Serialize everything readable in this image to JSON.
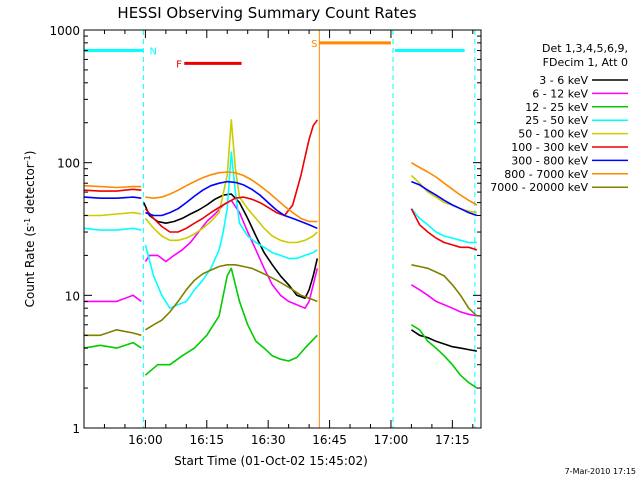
{
  "chart_data": {
    "type": "line",
    "title": "HESSI Observing Summary Count Rates",
    "xlabel": "Start Time (01-Oct-02 15:45:02)",
    "ylabel_main": "Count Rate (s",
    "ylabel_sup1": "-1",
    "ylabel_mid": " detector",
    "ylabel_sup2": "-1",
    "ylabel_end": ")",
    "x_unit": "minutes since start",
    "xlim": [
      0,
      97
    ],
    "ylim": [
      1,
      1000
    ],
    "yscale": "log",
    "x_ticks": [
      {
        "value": 15,
        "label": "16:00"
      },
      {
        "value": 30,
        "label": "16:15"
      },
      {
        "value": 45,
        "label": "16:30"
      },
      {
        "value": 60,
        "label": "16:45"
      },
      {
        "value": 75,
        "label": "17:00"
      },
      {
        "value": 90,
        "label": "17:15"
      }
    ],
    "y_ticks": [
      {
        "value": 1,
        "label": "1"
      },
      {
        "value": 10,
        "label": "10"
      },
      {
        "value": 100,
        "label": "100"
      },
      {
        "value": 1000,
        "label": "1000"
      }
    ],
    "legend_header": [
      "Det 1,3,4,5,6,9,",
      "FDecim 1, Att 0"
    ],
    "legend_position": "right",
    "series": [
      {
        "name": "3 - 6 keV",
        "color": "#000000",
        "segments": [
          {
            "x": [
              14.6,
              16,
              18,
              20,
              22,
              24,
              26,
              28,
              30,
              32,
              34,
              36,
              38,
              40,
              42,
              44,
              46,
              48,
              50,
              52,
              54,
              55,
              56,
              57
            ],
            "y": [
              50,
              40,
              36,
              35,
              36,
              38,
              41,
              44,
              48,
              53,
              57,
              58,
              50,
              38,
              28,
              21,
              17,
              14,
              12,
              10,
              9.5,
              11,
              14,
              19
            ]
          },
          {
            "x": [
              80,
              82,
              84,
              86,
              88,
              90,
              92,
              94,
              96
            ],
            "y": [
              5.5,
              5,
              4.8,
              4.5,
              4.3,
              4.1,
              4,
              3.9,
              3.8
            ]
          }
        ]
      },
      {
        "name": "6 - 12 keV",
        "color": "#ff00ff",
        "segments": [
          {
            "x": [
              0,
              4,
              8,
              12,
              14
            ],
            "y": [
              9,
              9,
              9,
              10,
              9
            ]
          },
          {
            "x": [
              15,
              16,
              18,
              20,
              22,
              24,
              26,
              28,
              30,
              32,
              34,
              36,
              38,
              40,
              42,
              44,
              46,
              48,
              50,
              52,
              54,
              55,
              56,
              57
            ],
            "y": [
              18,
              20,
              20,
              18,
              20,
              22,
              25,
              30,
              36,
              41,
              48,
              52,
              42,
              30,
              22,
              16,
              12,
              10,
              9,
              8.5,
              8,
              9,
              12,
              16
            ]
          },
          {
            "x": [
              80,
              82,
              84,
              86,
              88,
              90,
              92,
              94,
              96
            ],
            "y": [
              12,
              11,
              10,
              9,
              8.5,
              8,
              7.5,
              7.2,
              7
            ]
          }
        ]
      },
      {
        "name": "12 - 25 keV",
        "color": "#00cc00",
        "segments": [
          {
            "x": [
              0,
              4,
              8,
              12,
              14
            ],
            "y": [
              4,
              4.2,
              4,
              4.4,
              4
            ]
          },
          {
            "x": [
              15,
              18,
              21,
              24,
              27,
              30,
              33,
              35,
              36,
              37,
              38,
              40,
              42,
              44,
              46,
              48,
              50,
              52,
              54,
              57
            ],
            "y": [
              2.5,
              3,
              3,
              3.5,
              4,
              5,
              7,
              14,
              16,
              12,
              9,
              6,
              4.5,
              4,
              3.5,
              3.3,
              3.2,
              3.4,
              4,
              5
            ]
          },
          {
            "x": [
              80,
              82,
              84,
              86,
              88,
              90,
              92,
              94,
              96
            ],
            "y": [
              6,
              5.5,
              4.5,
              4,
              3.5,
              3,
              2.5,
              2.2,
              2
            ]
          }
        ]
      },
      {
        "name": "25 - 50 keV",
        "color": "#00ffff",
        "segments": [
          {
            "x": [
              0,
              4,
              8,
              12,
              14
            ],
            "y": [
              32,
              31,
              31,
              32,
              31
            ]
          },
          {
            "x": [
              15,
              17,
              19,
              21,
              23,
              25,
              27,
              29,
              31,
              33,
              34,
              35,
              36,
              37,
              38,
              40,
              42,
              44,
              46,
              48,
              50,
              52,
              54,
              56,
              57
            ],
            "y": [
              24,
              14,
              10,
              8,
              8.5,
              9,
              11,
              13,
              16,
              22,
              30,
              45,
              120,
              60,
              35,
              28,
              25,
              23,
              21,
              20,
              19,
              19,
              20,
              21,
              22
            ]
          },
          {
            "x": [
              80,
              82,
              84,
              86,
              88,
              90,
              92,
              94,
              96
            ],
            "y": [
              45,
              38,
              34,
              30,
              28,
              27,
              26,
              25,
              25
            ]
          }
        ]
      },
      {
        "name": "50 - 100 keV",
        "color": "#cccc00",
        "segments": [
          {
            "x": [
              0,
              4,
              8,
              12,
              14
            ],
            "y": [
              40,
              40,
              41,
              42,
              41
            ]
          },
          {
            "x": [
              15,
              17,
              19,
              21,
              23,
              25,
              27,
              29,
              31,
              33,
              35,
              36,
              37,
              38,
              40,
              42,
              44,
              46,
              48,
              50,
              52,
              54,
              56,
              57
            ],
            "y": [
              38,
              32,
              28,
              26,
              26,
              27,
              29,
              32,
              36,
              42,
              80,
              210,
              90,
              55,
              45,
              38,
              32,
              28,
              26,
              25,
              25,
              26,
              28,
              30
            ]
          },
          {
            "x": [
              80,
              82,
              84,
              86,
              88,
              90,
              92,
              94,
              96
            ],
            "y": [
              80,
              70,
              60,
              55,
              50,
              48,
              45,
              43,
              42
            ]
          }
        ]
      },
      {
        "name": "100 - 300 keV",
        "color": "#ee0000",
        "segments": [
          {
            "x": [
              0,
              4,
              8,
              12,
              14
            ],
            "y": [
              62,
              61,
              61,
              63,
              62
            ]
          },
          {
            "x": [
              15,
              17,
              19,
              21,
              23,
              25,
              27,
              29,
              31,
              33,
              35,
              37,
              39,
              41,
              43,
              45,
              47,
              49,
              51,
              53,
              54,
              55,
              56,
              57
            ],
            "y": [
              45,
              38,
              33,
              30,
              30,
              32,
              35,
              38,
              42,
              46,
              50,
              54,
              55,
              53,
              50,
              46,
              42,
              40,
              48,
              80,
              110,
              150,
              190,
              210
            ]
          },
          {
            "x": [
              80,
              82,
              84,
              86,
              88,
              90,
              92,
              94,
              96
            ],
            "y": [
              45,
              34,
              30,
              27,
              25,
              24,
              23,
              23,
              22
            ]
          }
        ]
      },
      {
        "name": "300 - 800 keV",
        "color": "#0000ff",
        "segments": [
          {
            "x": [
              0,
              4,
              8,
              12,
              14
            ],
            "y": [
              55,
              54,
              54,
              55,
              54
            ]
          },
          {
            "x": [
              15,
              17,
              19,
              21,
              23,
              25,
              27,
              29,
              31,
              33,
              35,
              37,
              39,
              41,
              43,
              45,
              47,
              49,
              51,
              53,
              55,
              57
            ],
            "y": [
              42,
              40,
              40,
              42,
              45,
              50,
              56,
              62,
              67,
              70,
              72,
              71,
              68,
              63,
              57,
              50,
              44,
              40,
              38,
              36,
              34,
              32
            ]
          },
          {
            "x": [
              80,
              82,
              84,
              86,
              88,
              90,
              92,
              94,
              96
            ],
            "y": [
              72,
              68,
              62,
              57,
              52,
              48,
              45,
              42,
              40
            ]
          }
        ]
      },
      {
        "name": "800 - 7000 keV",
        "color": "#ff8800",
        "segments": [
          {
            "x": [
              0,
              4,
              8,
              12,
              14
            ],
            "y": [
              67,
              66,
              65,
              66,
              66
            ]
          },
          {
            "x": [
              15,
              17,
              19,
              21,
              23,
              25,
              27,
              29,
              31,
              33,
              35,
              37,
              39,
              41,
              43,
              45,
              47,
              49,
              51,
              53,
              55,
              57
            ],
            "y": [
              55,
              54,
              55,
              58,
              62,
              67,
              72,
              77,
              81,
              84,
              85,
              84,
              80,
              74,
              67,
              60,
              53,
              47,
              42,
              38,
              36,
              36
            ]
          },
          {
            "x": [
              80,
              82,
              84,
              86,
              88,
              90,
              92,
              94,
              96
            ],
            "y": [
              100,
              92,
              85,
              78,
              70,
              63,
              57,
              52,
              48
            ]
          }
        ]
      },
      {
        "name": "7000 - 20000 keV",
        "color": "#808000",
        "segments": [
          {
            "x": [
              0,
              4,
              8,
              12,
              14
            ],
            "y": [
              5,
              5,
              5.5,
              5.2,
              5
            ]
          },
          {
            "x": [
              15,
              17,
              19,
              21,
              23,
              25,
              27,
              29,
              31,
              33,
              35,
              37,
              39,
              41,
              43,
              45,
              47,
              49,
              51,
              53,
              55,
              57
            ],
            "y": [
              5.5,
              6,
              6.5,
              7.5,
              9,
              11,
              13,
              14.5,
              15.5,
              16.5,
              17,
              17,
              16.5,
              16,
              15,
              14,
              13,
              12,
              11,
              10,
              9.5,
              9
            ]
          },
          {
            "x": [
              80,
              82,
              84,
              86,
              88,
              90,
              92,
              94,
              96
            ],
            "y": [
              17,
              16.5,
              16,
              15,
              14,
              12,
              10,
              8,
              7
            ]
          }
        ]
      }
    ],
    "gaps": [
      {
        "x": 14.5,
        "color": "#00ffff",
        "style": "dashed"
      },
      {
        "x": 57.5,
        "color": "#ff8800",
        "style": "solid"
      },
      {
        "x": 75.5,
        "color": "#00ffff",
        "style": "dashed"
      },
      {
        "x": 95.5,
        "color": "#00ffff",
        "style": "dashed"
      }
    ],
    "flag_bars": [
      {
        "label": "N",
        "label_color": "#00ffff",
        "color": "#00ffff",
        "x_start": 0,
        "x_end": 14.5,
        "y": 700,
        "label_x": 16
      },
      {
        "label": "",
        "label_color": "#00ffff",
        "color": "#00ffff",
        "x_start": 76,
        "x_end": 93,
        "y": 700,
        "label_x": 76
      },
      {
        "label": "F",
        "label_color": "#ee0000",
        "color": "#ee0000",
        "x_start": 24.5,
        "x_end": 38.5,
        "y": 560,
        "label_x": 22.5
      },
      {
        "label": "S",
        "label_color": "#ff8800",
        "color": "#ff8800",
        "x_start": 57.5,
        "x_end": 75,
        "y": 800,
        "label_x": 55.5
      }
    ],
    "footer_date": "7-Mar-2010 17:15"
  }
}
